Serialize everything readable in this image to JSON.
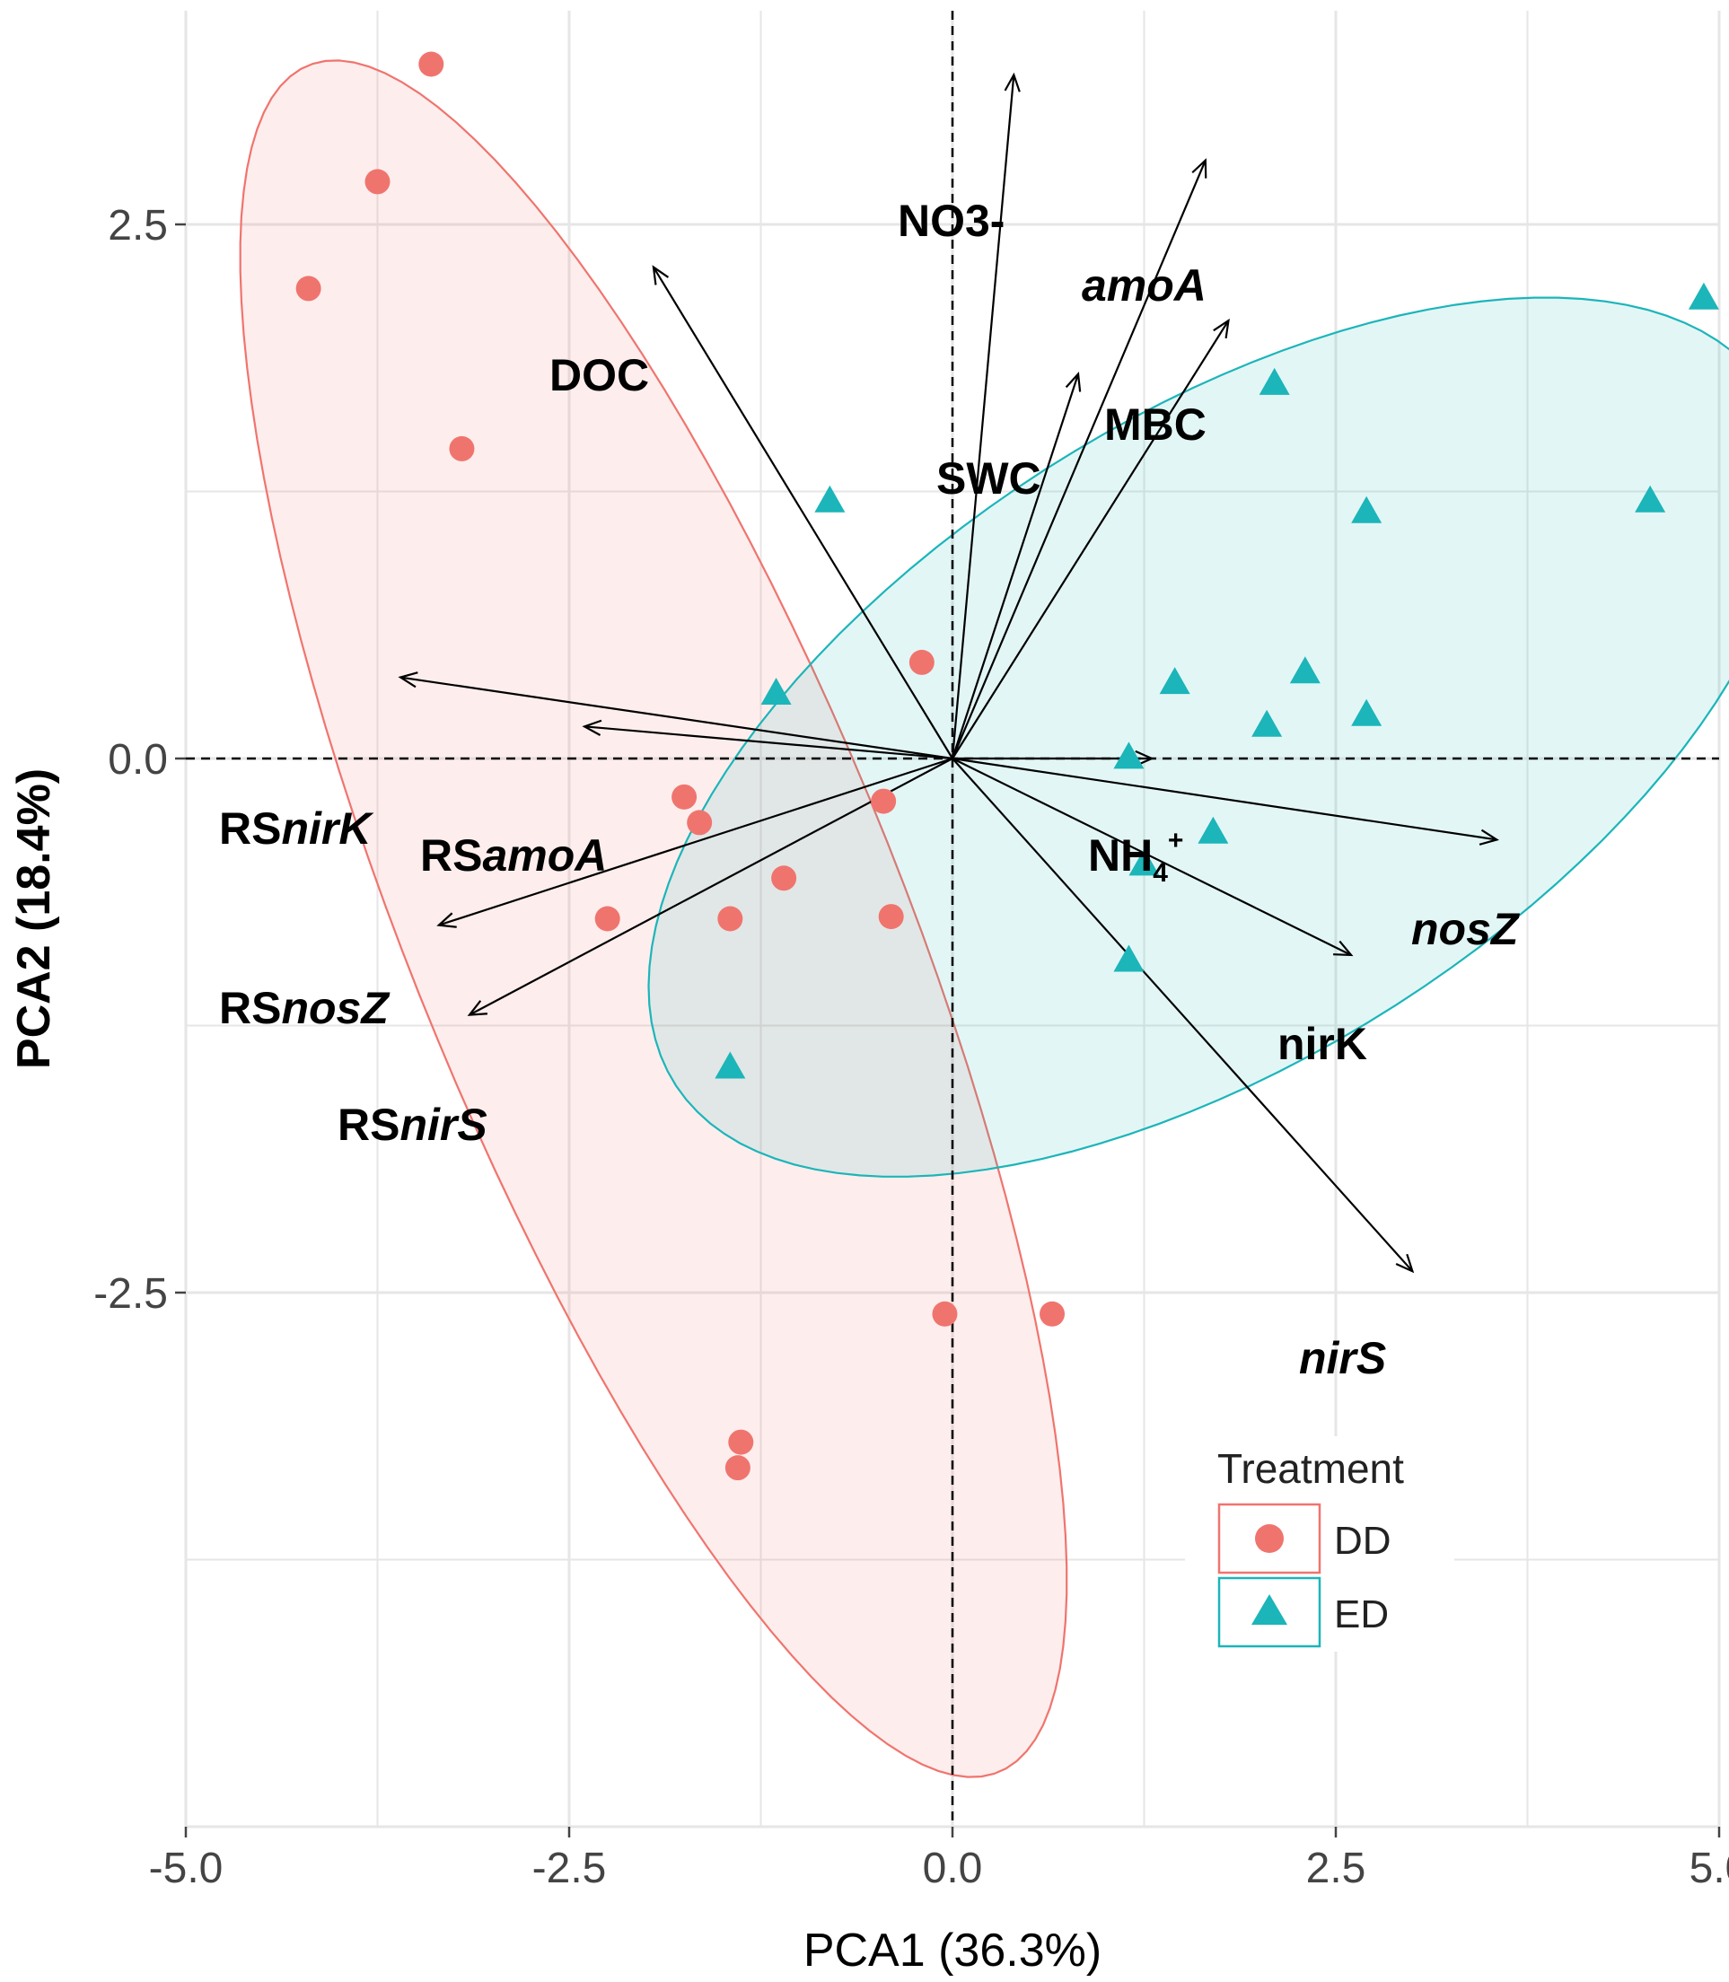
{
  "chart_data": {
    "type": "scatter",
    "subtype": "pca-biplot",
    "xlabel": "PCA1 (36.3%)",
    "ylabel": "PCA2 (18.4%)",
    "xlim": [
      -5.0,
      5.0
    ],
    "ylim": [
      -5.0,
      3.5
    ],
    "x_ticks": [
      -5.0,
      -2.5,
      0.0,
      2.5,
      5.0
    ],
    "x_tick_labels": [
      "-5.0",
      "-2.5",
      "0.0",
      "2.5",
      "5.0"
    ],
    "y_ticks": [
      2.5,
      0.0,
      -2.5
    ],
    "y_tick_labels": [
      "2.5",
      "0.0",
      "-2.5"
    ],
    "grid": true,
    "legend": {
      "title": "Treatment",
      "position": "bottom-right",
      "entries": [
        {
          "label": "DD",
          "shape": "circle",
          "color": "#F0746E"
        },
        {
          "label": "ED",
          "shape": "triangle",
          "color": "#1CB5B9"
        }
      ]
    },
    "series": [
      {
        "name": "DD",
        "shape": "circle",
        "color": "#F0746E",
        "points": [
          [
            -3.4,
            3.25
          ],
          [
            -3.75,
            2.7
          ],
          [
            -4.2,
            2.2
          ],
          [
            -3.2,
            1.45
          ],
          [
            -0.2,
            0.45
          ],
          [
            -1.75,
            -0.18
          ],
          [
            -1.65,
            -0.3
          ],
          [
            -0.45,
            -0.2
          ],
          [
            -1.1,
            -0.56
          ],
          [
            -2.25,
            -0.75
          ],
          [
            -1.45,
            -0.75
          ],
          [
            -0.4,
            -0.74
          ],
          [
            -0.05,
            -2.6
          ],
          [
            0.65,
            -2.6
          ],
          [
            -1.38,
            -3.2
          ],
          [
            -1.4,
            -3.32
          ]
        ],
        "ellipse": {
          "center": [
            -1.95,
            -0.75
          ],
          "semi_axes": [
            1.5,
            4.6
          ],
          "rotation_deg": 31
        }
      },
      {
        "name": "ED",
        "shape": "triangle",
        "color": "#1CB5B9",
        "points": [
          [
            -0.8,
            1.2
          ],
          [
            -1.15,
            0.3
          ],
          [
            4.9,
            2.15
          ],
          [
            2.1,
            1.75
          ],
          [
            4.55,
            1.2
          ],
          [
            2.7,
            1.15
          ],
          [
            1.45,
            0.35
          ],
          [
            2.3,
            0.4
          ],
          [
            2.05,
            0.15
          ],
          [
            2.7,
            0.2
          ],
          [
            1.15,
            0.0
          ],
          [
            1.7,
            -0.35
          ],
          [
            1.25,
            -0.5
          ],
          [
            1.15,
            -0.95
          ],
          [
            -1.45,
            -1.45
          ]
        ],
        "ellipse": {
          "center": [
            1.75,
            0.1
          ],
          "semi_axes": [
            3.95,
            1.6
          ],
          "rotation_deg": 21
        }
      }
    ],
    "loadings": [
      {
        "label": "NO3-",
        "prefix": "NO3-",
        "italic": "",
        "sub": "",
        "sup": "",
        "x": 0.4,
        "y": 3.2
      },
      {
        "label": "amoA",
        "prefix": "",
        "italic": "amoA",
        "sub": "",
        "sup": "",
        "x": 1.65,
        "y": 2.8
      },
      {
        "label": "DOC",
        "prefix": "DOC",
        "italic": "",
        "sub": "",
        "sup": "",
        "x": -1.95,
        "y": 2.3
      },
      {
        "label": "MBC",
        "prefix": "MBC",
        "italic": "",
        "sub": "",
        "sup": "",
        "x": 1.8,
        "y": 2.05
      },
      {
        "label": "SWC",
        "prefix": "SWC",
        "italic": "",
        "sub": "",
        "sup": "",
        "x": 0.82,
        "y": 1.8
      },
      {
        "label": "RSnirK",
        "prefix": "RS",
        "italic": "nirK",
        "sub": "",
        "sup": "",
        "x": -3.6,
        "y": 0.38
      },
      {
        "label": "RSamoA",
        "prefix": "RS",
        "italic": "amoA",
        "sub": "",
        "sup": "",
        "x": -2.4,
        "y": 0.15
      },
      {
        "label": "NH4+",
        "prefix": "NH",
        "italic": "",
        "sub": "4",
        "sup": "+",
        "x": 1.3,
        "y": 0.0
      },
      {
        "label": "nosZ",
        "prefix": "",
        "italic": "nosZ",
        "sub": "",
        "sup": "",
        "x": 3.55,
        "y": -0.38
      },
      {
        "label": "RSnosZ",
        "prefix": "RS",
        "italic": "nosZ",
        "sub": "",
        "sup": "",
        "x": -3.35,
        "y": -0.78
      },
      {
        "label": "nirK",
        "prefix": "nirK",
        "italic": "",
        "sub": "",
        "sup": "",
        "x": 2.6,
        "y": -0.92
      },
      {
        "label": "RSnirS",
        "prefix": "RS",
        "italic": "nirS",
        "sub": "",
        "sup": "",
        "x": -3.15,
        "y": -1.2
      },
      {
        "label": "nirS",
        "prefix": "",
        "italic": "nirS",
        "sub": "",
        "sup": "",
        "x": 3.0,
        "y": -2.4
      }
    ]
  }
}
